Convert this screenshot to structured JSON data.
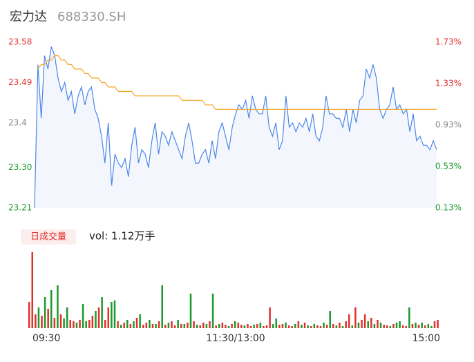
{
  "chart_data": [
    {
      "type": "line",
      "title": "宏力达",
      "subtitle": "688330.SH",
      "xlim": [
        0,
        120
      ],
      "xticks": [
        {
          "value": 0,
          "label": "09:30"
        },
        {
          "value": 60,
          "label": "11:30/13:00"
        },
        {
          "value": 120,
          "label": "15:00"
        }
      ],
      "ylim": [
        23.21,
        23.58
      ],
      "yticks": [
        {
          "value": 23.21,
          "label": "23.21"
        },
        {
          "value": 23.3,
          "label": "23.30"
        },
        23.4,
        23.49,
        23.58
      ],
      "ytick_colors": [
        "#1a9a2c",
        "#1a9a2c",
        "#888888",
        "#e0312f",
        "#e0312f"
      ],
      "y2lim": [
        0.13,
        1.73
      ],
      "y2ticks": [
        {
          "value": 0.13,
          "label": "0.13%"
        },
        {
          "value": 0.53,
          "label": "0.53%"
        },
        {
          "value": 0.93,
          "label": "0.93%"
        },
        {
          "value": 1.33,
          "label": "1.33%"
        },
        {
          "value": 1.73,
          "label": "1.73%"
        }
      ],
      "series": [
        {
          "color": "#4a86e8",
          "fill": "#f3f6fd",
          "values": [
            23.21,
            23.53,
            23.41,
            23.55,
            23.52,
            23.57,
            23.55,
            23.5,
            23.47,
            23.49,
            23.45,
            23.47,
            23.42,
            23.46,
            23.48,
            23.44,
            23.47,
            23.48,
            23.43,
            23.41,
            23.37,
            23.31,
            23.4,
            23.26,
            23.33,
            23.31,
            23.3,
            23.32,
            23.28,
            23.35,
            23.39,
            23.31,
            23.34,
            23.33,
            23.3,
            23.36,
            23.4,
            23.33,
            23.38,
            23.37,
            23.35,
            23.38,
            23.36,
            23.34,
            23.32,
            23.37,
            23.4,
            23.36,
            23.31,
            23.31,
            23.33,
            23.34,
            23.31,
            23.36,
            23.32,
            23.38,
            23.4,
            23.37,
            23.34,
            23.39,
            23.42,
            23.44,
            23.43,
            23.45,
            23.41,
            23.46,
            23.43,
            23.42,
            23.42,
            23.46,
            23.39,
            23.37,
            23.4,
            23.34,
            23.36,
            23.46,
            23.39,
            23.4,
            23.38,
            23.4,
            23.39,
            23.41,
            23.38,
            23.42,
            23.37,
            23.36,
            23.39,
            23.46,
            23.42,
            23.42,
            23.41,
            23.41,
            23.39,
            23.43,
            23.38,
            23.43,
            23.4,
            23.45,
            23.46,
            23.52,
            23.5,
            23.53,
            23.5,
            23.43,
            23.41,
            23.43,
            23.44,
            23.48,
            23.43,
            23.44,
            23.42,
            23.43,
            23.38,
            23.42,
            23.36,
            23.37,
            23.35,
            23.35,
            23.34,
            23.36,
            23.34
          ]
        },
        {
          "color": "#f5a623",
          "values": [
            null,
            23.52,
            23.53,
            23.53,
            23.54,
            23.54,
            23.55,
            23.55,
            23.54,
            23.54,
            23.53,
            23.53,
            23.52,
            23.52,
            23.52,
            23.51,
            23.51,
            23.5,
            23.5,
            23.5,
            23.49,
            23.49,
            23.48,
            23.48,
            23.48,
            23.47,
            23.47,
            23.47,
            23.47,
            23.47,
            23.46,
            23.46,
            23.46,
            23.46,
            23.46,
            23.46,
            23.46,
            23.46,
            23.46,
            23.46,
            23.46,
            23.46,
            23.46,
            23.46,
            23.45,
            23.45,
            23.45,
            23.45,
            23.45,
            23.45,
            23.45,
            23.44,
            23.44,
            23.44,
            23.43,
            23.43,
            23.43,
            23.43,
            23.43,
            23.43,
            23.43,
            23.43,
            23.43,
            23.43,
            23.43,
            23.43,
            23.43,
            23.43,
            23.43,
            23.43,
            23.43,
            23.43,
            23.43,
            23.43,
            23.43,
            23.43,
            23.43,
            23.43,
            23.43,
            23.43,
            23.43,
            23.43,
            23.43,
            23.43,
            23.43,
            23.43,
            23.43,
            23.43,
            23.43,
            23.43,
            23.43,
            23.43,
            23.43,
            23.43,
            23.43,
            23.43,
            23.43,
            23.43,
            23.43,
            23.43,
            23.43,
            23.43,
            23.43,
            23.43,
            23.43,
            23.43,
            23.43,
            23.43,
            23.43,
            23.43,
            23.43,
            23.43,
            23.43,
            23.43,
            23.43,
            23.43,
            23.43,
            23.43,
            23.43,
            23.43,
            23.43
          ]
        }
      ]
    },
    {
      "type": "bar",
      "title": "日成交量",
      "annotation": "vol: 1.12万手",
      "ylim": [
        0,
        110
      ],
      "up_color": "#e0312f",
      "down_color": "#1a9a2c",
      "values": [
        38,
        110,
        20,
        30,
        18,
        45,
        28,
        55,
        15,
        62,
        20,
        14,
        30,
        12,
        10,
        8,
        12,
        35,
        10,
        12,
        18,
        25,
        30,
        45,
        12,
        30,
        38,
        40,
        10,
        5,
        8,
        12,
        6,
        10,
        15,
        20,
        5,
        8,
        12,
        6,
        6,
        10,
        62,
        5,
        8,
        10,
        4,
        12,
        6,
        6,
        8,
        50,
        10,
        5,
        4,
        8,
        6,
        10,
        50,
        4,
        6,
        8,
        5,
        3,
        6,
        10,
        8,
        5,
        4,
        6,
        3,
        5,
        6,
        8,
        3,
        4,
        30,
        6,
        14,
        5,
        6,
        8,
        4,
        3,
        6,
        10,
        5,
        8,
        4,
        3,
        6,
        4,
        3,
        8,
        5,
        25,
        6,
        4,
        8,
        3,
        10,
        20,
        4,
        30,
        8,
        12,
        20,
        10,
        15,
        6,
        12,
        8,
        5,
        4,
        3,
        6,
        8,
        10,
        4,
        3,
        30,
        6,
        8,
        5,
        8,
        4,
        6,
        3,
        10,
        12
      ],
      "up": [
        1,
        1,
        1,
        0,
        1,
        0,
        1,
        0,
        1,
        0,
        1,
        0,
        0,
        1,
        1,
        0,
        1,
        0,
        0,
        1,
        1,
        0,
        1,
        0,
        1,
        1,
        0,
        0,
        1,
        0,
        1,
        0,
        1,
        0,
        1,
        0,
        1,
        1,
        0,
        1,
        0,
        1,
        0,
        1,
        0,
        1,
        1,
        0,
        1,
        0,
        1,
        0,
        1,
        0,
        1,
        1,
        0,
        1,
        0,
        1,
        0,
        1,
        1,
        0,
        1,
        0,
        1,
        1,
        0,
        1,
        1,
        0,
        1,
        0,
        1,
        1,
        1,
        0,
        0,
        1,
        1,
        0,
        1,
        1,
        0,
        1,
        0,
        1,
        0,
        1,
        0,
        1,
        1,
        0,
        1,
        0,
        1,
        0,
        1,
        0,
        1,
        1,
        0,
        1,
        0,
        1,
        1,
        0,
        1,
        0,
        1,
        0,
        1,
        1,
        0,
        1,
        0,
        0,
        1,
        1,
        0,
        1,
        0,
        1,
        0,
        1,
        0,
        0,
        1,
        1
      ]
    }
  ]
}
